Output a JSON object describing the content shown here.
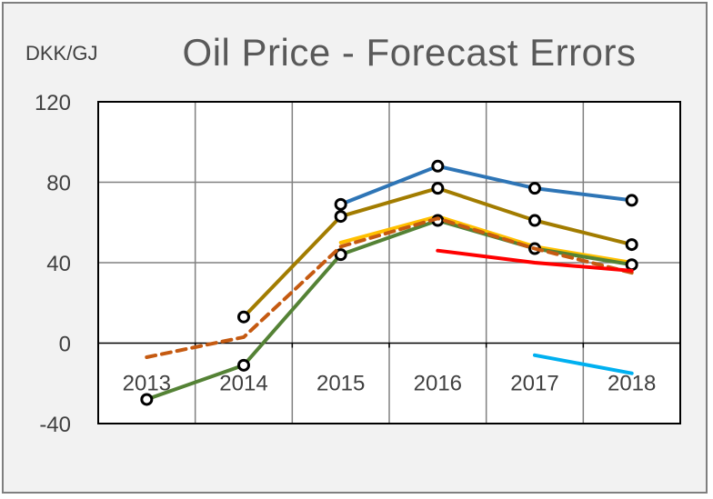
{
  "chart_data": {
    "type": "line",
    "title": "Oil Price - Forecast Errors",
    "ylabel": "DKK/GJ",
    "xlabel": "",
    "categories": [
      "2013",
      "2014",
      "2015",
      "2016",
      "2017",
      "2018"
    ],
    "ylim": [
      -40,
      120
    ],
    "yticks": [
      120,
      80,
      40,
      0,
      -40
    ],
    "grid": true,
    "legend": "none",
    "series": [
      {
        "color": "#2e75b6",
        "dash": false,
        "markers": true,
        "values": [
          null,
          null,
          69,
          88,
          77,
          71
        ]
      },
      {
        "color": "#a27c00",
        "dash": false,
        "markers": true,
        "values": [
          null,
          13,
          63,
          77,
          61,
          49
        ]
      },
      {
        "color": "#ffc000",
        "dash": false,
        "markers": false,
        "values": [
          null,
          null,
          50,
          63,
          48,
          40
        ]
      },
      {
        "color": "#548235",
        "dash": false,
        "markers": true,
        "values": [
          -28,
          -11,
          44,
          61,
          47,
          39
        ]
      },
      {
        "color": "#c55a11",
        "dash": true,
        "markers": false,
        "values": [
          -7,
          3,
          48,
          62,
          47,
          35
        ]
      },
      {
        "color": "#ff0000",
        "dash": false,
        "markers": false,
        "values": [
          null,
          null,
          null,
          46,
          40,
          36
        ]
      },
      {
        "color": "#00b0f0",
        "dash": false,
        "markers": false,
        "values": [
          null,
          null,
          null,
          null,
          -6,
          -15
        ]
      }
    ]
  }
}
